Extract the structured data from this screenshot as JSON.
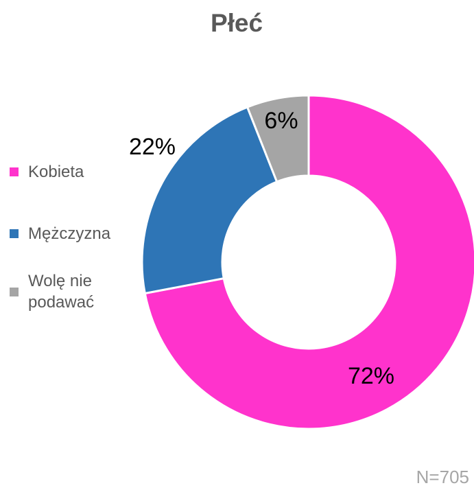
{
  "chart_data": {
    "type": "donut",
    "title": "Płeć",
    "categories": [
      "Kobieta",
      "Mężczyzna",
      "Wolę nie podawać"
    ],
    "values": [
      72,
      22,
      6
    ],
    "value_labels": [
      "72%",
      "22%",
      "6%"
    ],
    "colors": [
      "#ff33cc",
      "#2e75b6",
      "#a5a5a5"
    ],
    "legend": "left",
    "annotation": "N=705"
  }
}
